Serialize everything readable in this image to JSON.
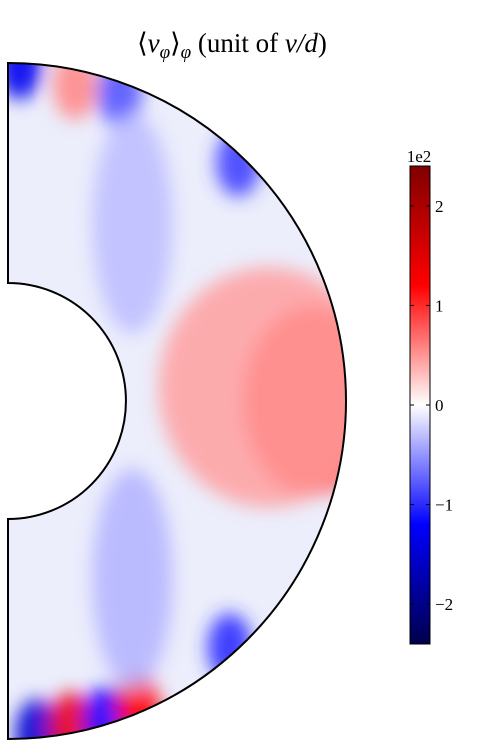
{
  "chart_data": {
    "type": "heatmap",
    "title": "⟨vφ⟩φ (unit of ν/d)",
    "title_parts": {
      "open_bracket": "⟨",
      "var": "v",
      "var_sub": "φ",
      "close_bracket": "⟩",
      "outer_sub": "φ",
      "rest_plain": " (unit of ",
      "nu": "ν",
      "slash_d": "/d",
      "close_paren": ")"
    },
    "domain": "meridional half-annulus",
    "colormap": "seismic",
    "colorbar": {
      "multiplier": "1e2",
      "range": [
        -2.4,
        2.4
      ],
      "ticks": [
        2,
        1,
        0,
        -1,
        -2
      ],
      "tick_labels": [
        "2",
        "1",
        "0",
        "−1",
        "−2"
      ]
    },
    "features": [
      {
        "name": "equatorial-positive-lobe",
        "r": 0.85,
        "theta_deg": 0,
        "value": 1.05
      },
      {
        "name": "equatorial-positive-inner",
        "r": 0.65,
        "theta_deg": 3,
        "value": 0.45
      },
      {
        "name": "north-pole-negative",
        "r": 0.99,
        "theta_deg": 88,
        "value": -1.3
      },
      {
        "name": "north-positive-streak",
        "r": 0.93,
        "theta_deg": 78,
        "value": 0.55
      },
      {
        "name": "north-negative-streak",
        "r": 0.95,
        "theta_deg": 70,
        "value": -0.8
      },
      {
        "name": "north-mid-negative",
        "r": 0.97,
        "theta_deg": 46,
        "value": -0.9
      },
      {
        "name": "north-tangent-cylinder-negative",
        "r": 0.45,
        "theta_deg": 55,
        "value": -0.3
      },
      {
        "name": "south-pole-negative",
        "r": 0.98,
        "theta_deg": -85,
        "value": -1.5
      },
      {
        "name": "south-positive-streak",
        "r": 0.97,
        "theta_deg": -79,
        "value": 1.4
      },
      {
        "name": "south-negative-streak",
        "r": 0.98,
        "theta_deg": -73,
        "value": -1.2
      },
      {
        "name": "south-positive-streak-2",
        "r": 0.97,
        "theta_deg": -67,
        "value": 1.2
      },
      {
        "name": "south-mid-negative",
        "r": 0.97,
        "theta_deg": -48,
        "value": -1.0
      },
      {
        "name": "south-tangent-cylinder-negative",
        "r": 0.45,
        "theta_deg": -55,
        "value": -0.35
      }
    ]
  }
}
